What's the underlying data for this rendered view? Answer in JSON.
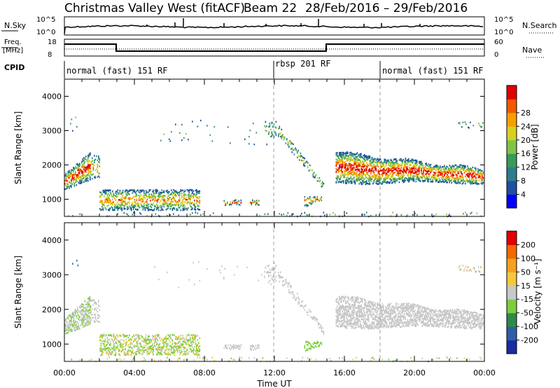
{
  "header": {
    "title": "Christmas Valley West (fitACF)",
    "beam": "Beam 22",
    "dates": "28/Feb/2016 – 29/Feb/2016"
  },
  "panels": {
    "nsky": {
      "label": "N.Sky",
      "right_label": "N.Search",
      "ticks_left": [
        "10^5",
        "10^0"
      ],
      "ticks_right": [
        "10^5",
        "10^0"
      ]
    },
    "freq": {
      "label_line1": "Freq.",
      "label_line2": "[MHz]",
      "right_label": "Nave",
      "ticks_left": [
        "18",
        "8"
      ],
      "ticks_right": [
        "60",
        "0"
      ]
    },
    "cpid": {
      "label": "CPID",
      "segments": [
        {
          "text": "normal (fast) 151 RF"
        },
        {
          "text": "rbsp 201 RF"
        },
        {
          "text": "normal (fast) 151 RF"
        }
      ]
    }
  },
  "chart_data": [
    {
      "type": "heatmap",
      "ylabel": "Slant Range [km]",
      "xlabel": "Time UT",
      "x_ticks": [
        "00:00",
        "04:00",
        "08:00",
        "12:00",
        "16:00",
        "20:00",
        "00:00"
      ],
      "y_ticks": [
        "1000",
        "2000",
        "3000",
        "4000"
      ],
      "ylim": [
        500,
        4500
      ],
      "colorbar": {
        "label": "Power [dB]",
        "ticks": [
          "4",
          "8",
          "12",
          "16",
          "20",
          "24",
          "28"
        ],
        "colors": [
          "#0000ff",
          "#1f4fa0",
          "#2e7d8c",
          "#3a9a5a",
          "#7fc44a",
          "#d8d020",
          "#f5a000",
          "#f05a00",
          "#e00000"
        ]
      }
    },
    {
      "type": "heatmap",
      "ylabel": "Slant Range [km]",
      "xlabel": "Time UT",
      "x_ticks": [
        "00:00",
        "04:00",
        "08:00",
        "12:00",
        "16:00",
        "20:00",
        "00:00"
      ],
      "y_ticks": [
        "1000",
        "2000",
        "3000",
        "4000"
      ],
      "ylim": [
        500,
        4500
      ],
      "colorbar": {
        "label": "Velocity [m s⁻¹]",
        "ticks": [
          "200",
          "100",
          "50",
          "15",
          "-15",
          "-50",
          "-100",
          "-200"
        ],
        "colors": [
          "#1a2ca0",
          "#2e5fa6",
          "#2f8a4a",
          "#7ccf3c",
          "#c8c8c8",
          "#f5c840",
          "#f5a020",
          "#f06a00",
          "#e00000"
        ]
      }
    }
  ],
  "footer": {
    "xlabel": "Time UT"
  }
}
